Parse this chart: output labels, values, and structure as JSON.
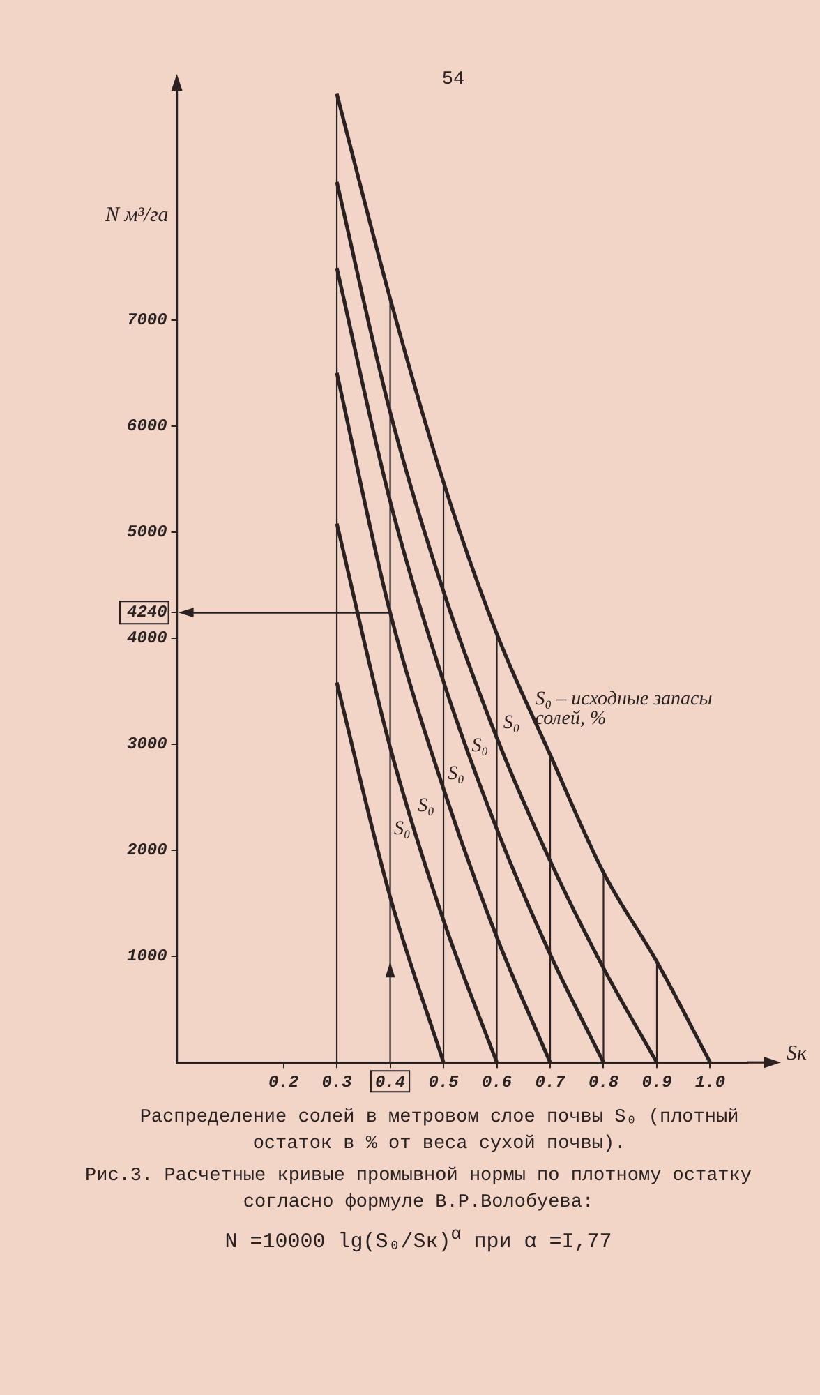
{
  "chart_data": {
    "type": "line",
    "title": "Рис.3. Расчетные кривые промывной нормы по плотному остатку согласно формуле В.Р.Волобуева:",
    "xlabel": "Sк",
    "ylabel": "N м³/га",
    "xlim": [
      0,
      1.07
    ],
    "xticks": [
      0.2,
      0.3,
      0.4,
      0.5,
      0.6,
      0.7,
      0.8,
      0.9,
      {
        "value": 1.0,
        "label": "1.0"
      }
    ],
    "ylim": [
      0,
      9200
    ],
    "yticks": [
      1000,
      2000,
      3000,
      4000,
      4240,
      5000,
      6000,
      7000
    ],
    "marker": "none",
    "line_style": "solid",
    "series": [
      {
        "color": "#2a2222",
        "x": [
          0.3,
          0.4,
          0.5,
          0.6,
          0.7,
          0.8,
          0.9,
          1.0
        ],
        "values": [
          9130,
          7200,
          5470,
          4040,
          2900,
          1790,
          950,
          0
        ]
      },
      {
        "color": "#2a2222",
        "x": [
          0.3,
          0.4,
          0.5,
          0.6,
          0.7,
          0.8,
          0.9
        ],
        "values": [
          8300,
          6130,
          4440,
          3060,
          1900,
          890,
          0
        ]
      },
      {
        "color": "#2a2222",
        "x": [
          0.3,
          0.4,
          0.5,
          0.6,
          0.7,
          0.8
        ],
        "values": [
          7490,
          5290,
          3590,
          2200,
          1020,
          0
        ]
      },
      {
        "color": "#2a2222",
        "x": [
          0.3,
          0.4,
          0.5,
          0.6,
          0.7
        ],
        "values": [
          6500,
          4240,
          2580,
          1180,
          0
        ]
      },
      {
        "color": "#2a2222",
        "x": [
          0.3,
          0.4,
          0.5,
          0.6
        ],
        "values": [
          5080,
          2970,
          1340,
          0
        ]
      },
      {
        "color": "#2a2222",
        "x": [
          0.3,
          0.4,
          0.5
        ],
        "values": [
          3580,
          1560,
          0
        ]
      }
    ],
    "ref_lines": [
      {
        "axis": "x",
        "value": 0.3
      },
      {
        "axis": "x",
        "value": 0.4
      },
      {
        "axis": "x",
        "value": 0.5
      },
      {
        "axis": "x",
        "value": 0.6
      },
      {
        "axis": "x",
        "value": 0.7
      },
      {
        "axis": "x",
        "value": 0.8
      },
      {
        "axis": "x",
        "value": 0.9
      },
      {
        "axis": "y",
        "value": 4240
      }
    ],
    "annotations": [
      "54",
      "Распределение солей в метровом слое почвы S₀ (плотный остаток в % от веса сухой почвы).",
      "N =10000 lg(S₀/Sк)$^{α}$   при α =I,77",
      "S₀",
      "S₀",
      "S₀",
      "S₀",
      "S₀",
      "S₀ – исходные запасы солей, %"
    ]
  }
}
